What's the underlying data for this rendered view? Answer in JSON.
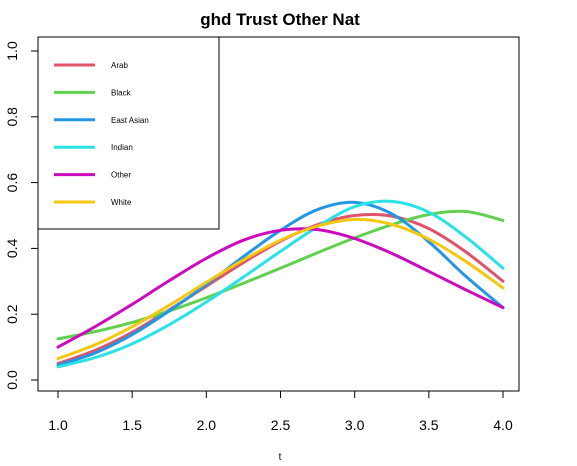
{
  "chart_data": {
    "type": "line",
    "title": "ghd Trust Other Nat",
    "xlabel": "t",
    "ylabel": "",
    "xlim": [
      1.0,
      4.0
    ],
    "ylim": [
      0.0,
      1.0
    ],
    "x_ticks": [
      "1.0",
      "1.5",
      "2.0",
      "2.5",
      "3.0",
      "3.5",
      "4.0"
    ],
    "y_ticks": [
      "0.0",
      "0.2",
      "0.4",
      "0.6",
      "0.8",
      "1.0"
    ],
    "legend_position": "top-left",
    "grid": false,
    "x": [
      1.0,
      1.25,
      1.5,
      1.75,
      2.0,
      2.25,
      2.5,
      2.75,
      3.0,
      3.25,
      3.5,
      3.75,
      4.0
    ],
    "series": [
      {
        "name": "Arab",
        "color": "#DF536B",
        "values": [
          0.05,
          0.09,
          0.145,
          0.213,
          0.285,
          0.357,
          0.422,
          0.472,
          0.5,
          0.498,
          0.46,
          0.389,
          0.3
        ]
      },
      {
        "name": "Black",
        "color": "#61D04F",
        "values": [
          0.125,
          0.147,
          0.175,
          0.21,
          0.25,
          0.294,
          0.34,
          0.387,
          0.432,
          0.472,
          0.503,
          0.512,
          0.485
        ]
      },
      {
        "name": "East Asian",
        "color": "#2297E6",
        "values": [
          0.045,
          0.082,
          0.138,
          0.21,
          0.29,
          0.375,
          0.455,
          0.518,
          0.54,
          0.505,
          0.42,
          0.315,
          0.22
        ]
      },
      {
        "name": "Indian",
        "color": "#28E2E5",
        "values": [
          0.04,
          0.068,
          0.11,
          0.168,
          0.237,
          0.313,
          0.391,
          0.466,
          0.527,
          0.543,
          0.51,
          0.434,
          0.34
        ]
      },
      {
        "name": "Other",
        "color": "#CD0BBC",
        "values": [
          0.1,
          0.162,
          0.23,
          0.302,
          0.37,
          0.425,
          0.455,
          0.457,
          0.43,
          0.385,
          0.33,
          0.274,
          0.22
        ]
      },
      {
        "name": "White",
        "color": "#F5C710",
        "values": [
          0.065,
          0.107,
          0.162,
          0.227,
          0.297,
          0.365,
          0.425,
          0.468,
          0.488,
          0.473,
          0.428,
          0.36,
          0.28
        ]
      }
    ]
  }
}
